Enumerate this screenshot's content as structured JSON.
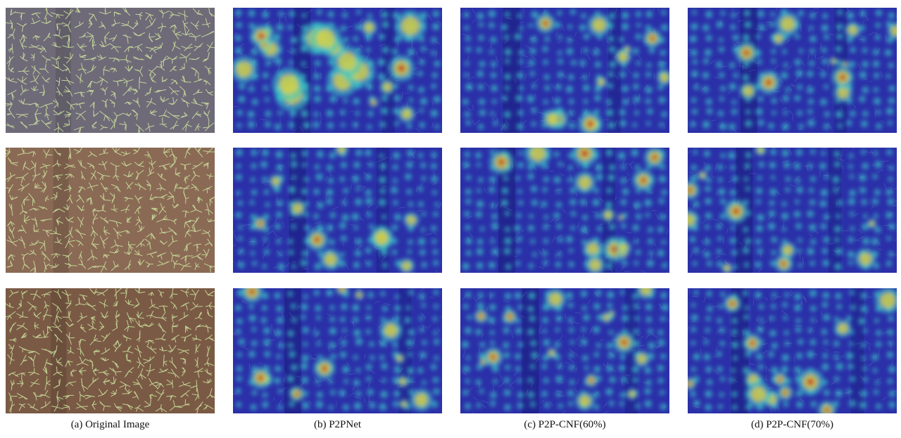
{
  "figure": {
    "captions": [
      "(a) Original Image",
      "(b) P2PNet",
      "(c) P2P-CNF(60%)",
      "(d) P2P-CNF(70%)"
    ],
    "rows": 3,
    "colors": {
      "heat_base": "#2b2fa8",
      "heat_mid": "#38c9c8",
      "heat_hot": "#e8d23a",
      "heat_peak": "#c8201c",
      "field_gray": "#6f6a78",
      "field_brown": "#8a6a55",
      "field_mud": "#7a5a45",
      "seedling": "#cfe6a0"
    }
  }
}
